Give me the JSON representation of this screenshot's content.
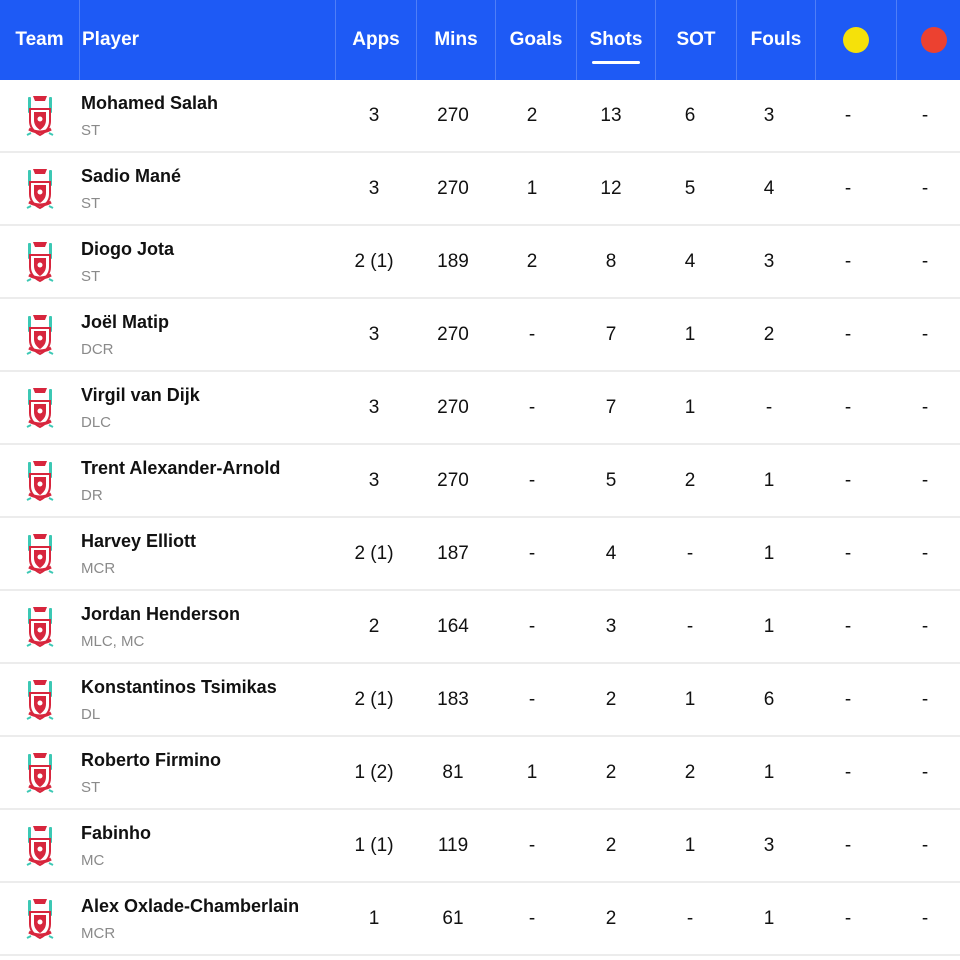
{
  "header": {
    "team": "Team",
    "player": "Player",
    "apps": "Apps",
    "mins": "Mins",
    "goals": "Goals",
    "shots": "Shots",
    "sot": "SOT",
    "fouls": "Fouls",
    "active_column": "Shots",
    "yellow_icon": "yellow-card-icon",
    "red_icon": "red-card-icon"
  },
  "colors": {
    "header_bg": "#1e5af5",
    "yellow": "#f5e10a",
    "red": "#ec4130",
    "crest_red": "#d7263d",
    "crest_teal": "#3cc8b4"
  },
  "rows": [
    {
      "name": "Mohamed Salah",
      "pos": "ST",
      "apps": "3",
      "mins": "270",
      "goals": "2",
      "shots": "13",
      "sot": "6",
      "fouls": "3",
      "yellow": "-",
      "red": "-"
    },
    {
      "name": "Sadio Mané",
      "pos": "ST",
      "apps": "3",
      "mins": "270",
      "goals": "1",
      "shots": "12",
      "sot": "5",
      "fouls": "4",
      "yellow": "-",
      "red": "-"
    },
    {
      "name": "Diogo Jota",
      "pos": "ST",
      "apps": "2 (1)",
      "mins": "189",
      "goals": "2",
      "shots": "8",
      "sot": "4",
      "fouls": "3",
      "yellow": "-",
      "red": "-"
    },
    {
      "name": "Joël Matip",
      "pos": "DCR",
      "apps": "3",
      "mins": "270",
      "goals": "-",
      "shots": "7",
      "sot": "1",
      "fouls": "2",
      "yellow": "-",
      "red": "-"
    },
    {
      "name": "Virgil van Dijk",
      "pos": "DLC",
      "apps": "3",
      "mins": "270",
      "goals": "-",
      "shots": "7",
      "sot": "1",
      "fouls": "-",
      "yellow": "-",
      "red": "-"
    },
    {
      "name": "Trent Alexander-Arnold",
      "pos": "DR",
      "apps": "3",
      "mins": "270",
      "goals": "-",
      "shots": "5",
      "sot": "2",
      "fouls": "1",
      "yellow": "-",
      "red": "-"
    },
    {
      "name": "Harvey Elliott",
      "pos": "MCR",
      "apps": "2 (1)",
      "mins": "187",
      "goals": "-",
      "shots": "4",
      "sot": "-",
      "fouls": "1",
      "yellow": "-",
      "red": "-"
    },
    {
      "name": "Jordan Henderson",
      "pos": "MLC, MC",
      "apps": "2",
      "mins": "164",
      "goals": "-",
      "shots": "3",
      "sot": "-",
      "fouls": "1",
      "yellow": "-",
      "red": "-"
    },
    {
      "name": "Konstantinos Tsimikas",
      "pos": "DL",
      "apps": "2 (1)",
      "mins": "183",
      "goals": "-",
      "shots": "2",
      "sot": "1",
      "fouls": "6",
      "yellow": "-",
      "red": "-"
    },
    {
      "name": "Roberto Firmino",
      "pos": "ST",
      "apps": "1 (2)",
      "mins": "81",
      "goals": "1",
      "shots": "2",
      "sot": "2",
      "fouls": "1",
      "yellow": "-",
      "red": "-"
    },
    {
      "name": "Fabinho",
      "pos": "MC",
      "apps": "1 (1)",
      "mins": "119",
      "goals": "-",
      "shots": "2",
      "sot": "1",
      "fouls": "3",
      "yellow": "-",
      "red": "-"
    },
    {
      "name": "Alex Oxlade-Chamberlain",
      "pos": "MCR",
      "apps": "1",
      "mins": "61",
      "goals": "-",
      "shots": "2",
      "sot": "-",
      "fouls": "1",
      "yellow": "-",
      "red": "-"
    }
  ]
}
